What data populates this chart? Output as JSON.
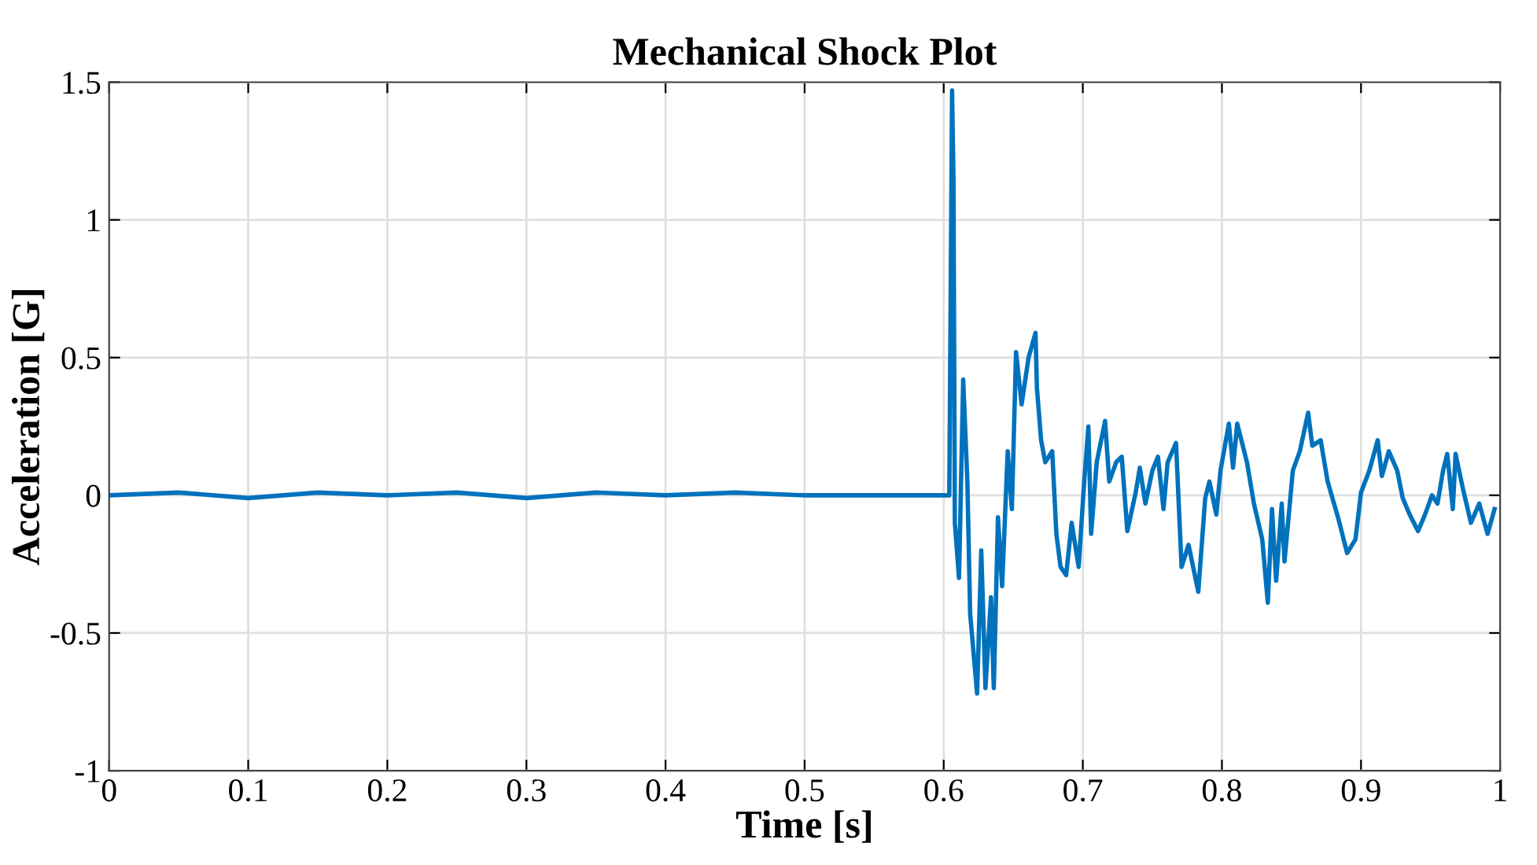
{
  "chart_data": {
    "type": "line",
    "title": "Mechanical Shock Plot",
    "xlabel": "Time [s]",
    "ylabel": "Acceleration [G]",
    "xlim": [
      0,
      1
    ],
    "xticks": [
      0,
      0.1,
      0.2,
      0.3,
      0.4,
      0.5,
      0.6,
      0.7,
      0.8,
      0.9,
      1
    ],
    "ylim": [
      -1,
      1.5
    ],
    "yticks": [
      -1,
      -0.5,
      0,
      0.5,
      1,
      1.5
    ],
    "grid": true,
    "series": [
      {
        "color": "#0072bd",
        "x": [
          0,
          0.05,
          0.1,
          0.15,
          0.2,
          0.25,
          0.3,
          0.35,
          0.4,
          0.45,
          0.5,
          0.55,
          0.604,
          0.606,
          0.607,
          0.608,
          0.611,
          0.614,
          0.617,
          0.619,
          0.624,
          0.627,
          0.63,
          0.634,
          0.636,
          0.639,
          0.642,
          0.646,
          0.649,
          0.652,
          0.656,
          0.661,
          0.666,
          0.667,
          0.67,
          0.673,
          0.678,
          0.681,
          0.684,
          0.688,
          0.692,
          0.697,
          0.701,
          0.704,
          0.706,
          0.71,
          0.716,
          0.719,
          0.724,
          0.728,
          0.732,
          0.738,
          0.741,
          0.745,
          0.75,
          0.754,
          0.758,
          0.761,
          0.767,
          0.771,
          0.776,
          0.783,
          0.788,
          0.791,
          0.796,
          0.799,
          0.805,
          0.808,
          0.811,
          0.818,
          0.823,
          0.829,
          0.833,
          0.836,
          0.839,
          0.843,
          0.845,
          0.851,
          0.856,
          0.862,
          0.865,
          0.871,
          0.876,
          0.884,
          0.89,
          0.896,
          0.9,
          0.906,
          0.912,
          0.915,
          0.92,
          0.926,
          0.93,
          0.935,
          0.941,
          0.946,
          0.951,
          0.955,
          0.959,
          0.962,
          0.966,
          0.968,
          0.973,
          0.979,
          0.985,
          0.991,
          0.996
        ],
        "values": [
          0,
          0.01,
          -0.01,
          0.01,
          0,
          0.01,
          -0.01,
          0.01,
          0,
          0.01,
          0,
          0,
          0,
          1.47,
          1.15,
          -0.1,
          -0.3,
          0.42,
          0.05,
          -0.43,
          -0.72,
          -0.2,
          -0.7,
          -0.37,
          -0.7,
          -0.08,
          -0.33,
          0.16,
          -0.05,
          0.52,
          0.33,
          0.5,
          0.59,
          0.39,
          0.2,
          0.12,
          0.16,
          -0.14,
          -0.26,
          -0.29,
          -0.1,
          -0.26,
          0.05,
          0.25,
          -0.14,
          0.12,
          0.27,
          0.05,
          0.12,
          0.14,
          -0.13,
          0.01,
          0.1,
          -0.03,
          0.09,
          0.14,
          -0.05,
          0.12,
          0.19,
          -0.26,
          -0.18,
          -0.35,
          -0.01,
          0.05,
          -0.07,
          0.09,
          0.26,
          0.1,
          0.26,
          0.12,
          -0.03,
          -0.16,
          -0.39,
          -0.05,
          -0.31,
          -0.03,
          -0.24,
          0.09,
          0.16,
          0.3,
          0.18,
          0.2,
          0.05,
          -0.09,
          -0.21,
          -0.16,
          0.01,
          0.09,
          0.2,
          0.07,
          0.16,
          0.09,
          -0.01,
          -0.07,
          -0.13,
          -0.07,
          0,
          -0.03,
          0.09,
          0.15,
          -0.05,
          0.15,
          0.03,
          -0.1,
          -0.03,
          -0.14,
          -0.05
        ]
      }
    ]
  }
}
